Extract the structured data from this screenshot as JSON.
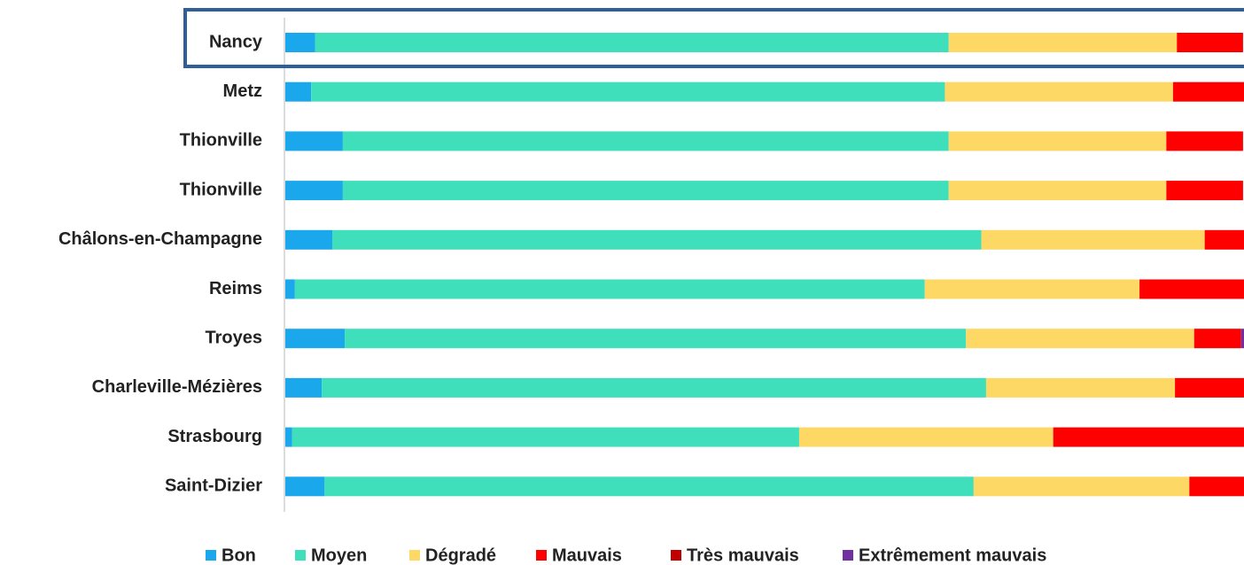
{
  "chart_data": {
    "type": "stacked-barh",
    "categories": [
      "Nancy",
      "Metz",
      "Thionville",
      "Thionville",
      "Châlons-en-Champagne",
      "Reims",
      "Troyes",
      "Charleville-Mézières",
      "Strasbourg",
      "Saint-Dizier"
    ],
    "xlim": [
      0,
      100
    ],
    "legend": "bottom",
    "series": [
      {
        "name": "Bon",
        "color": "#1aa7ec",
        "values": [
          3.1,
          2.7,
          6.0,
          6.0,
          4.9,
          1.0,
          6.2,
          3.8,
          0.7,
          4.1
        ]
      },
      {
        "name": "Moyen",
        "color": "#40dfbb",
        "values": [
          66.1,
          66.1,
          63.2,
          63.2,
          67.7,
          65.7,
          64.8,
          69.3,
          52.9,
          67.7
        ]
      },
      {
        "name": "Dégradé",
        "color": "#fdd865",
        "values": [
          23.8,
          23.8,
          22.7,
          22.7,
          23.3,
          22.4,
          23.8,
          19.7,
          26.5,
          22.5
        ]
      },
      {
        "name": "Mauvais",
        "color": "#fe0000",
        "values": [
          6.9,
          7.4,
          8.0,
          8.0,
          4.2,
          10.9,
          4.9,
          7.2,
          19.9,
          5.8
        ]
      },
      {
        "name": "Très mauvais",
        "color": "#c00000",
        "values": [
          0,
          0,
          0,
          0,
          0,
          0,
          0,
          0,
          0,
          0
        ]
      },
      {
        "name": "Extrêmement mauvais",
        "color": "#7030a0",
        "values": [
          0,
          0,
          0,
          0,
          0,
          0,
          0.3,
          0,
          0,
          0
        ]
      }
    ]
  }
}
